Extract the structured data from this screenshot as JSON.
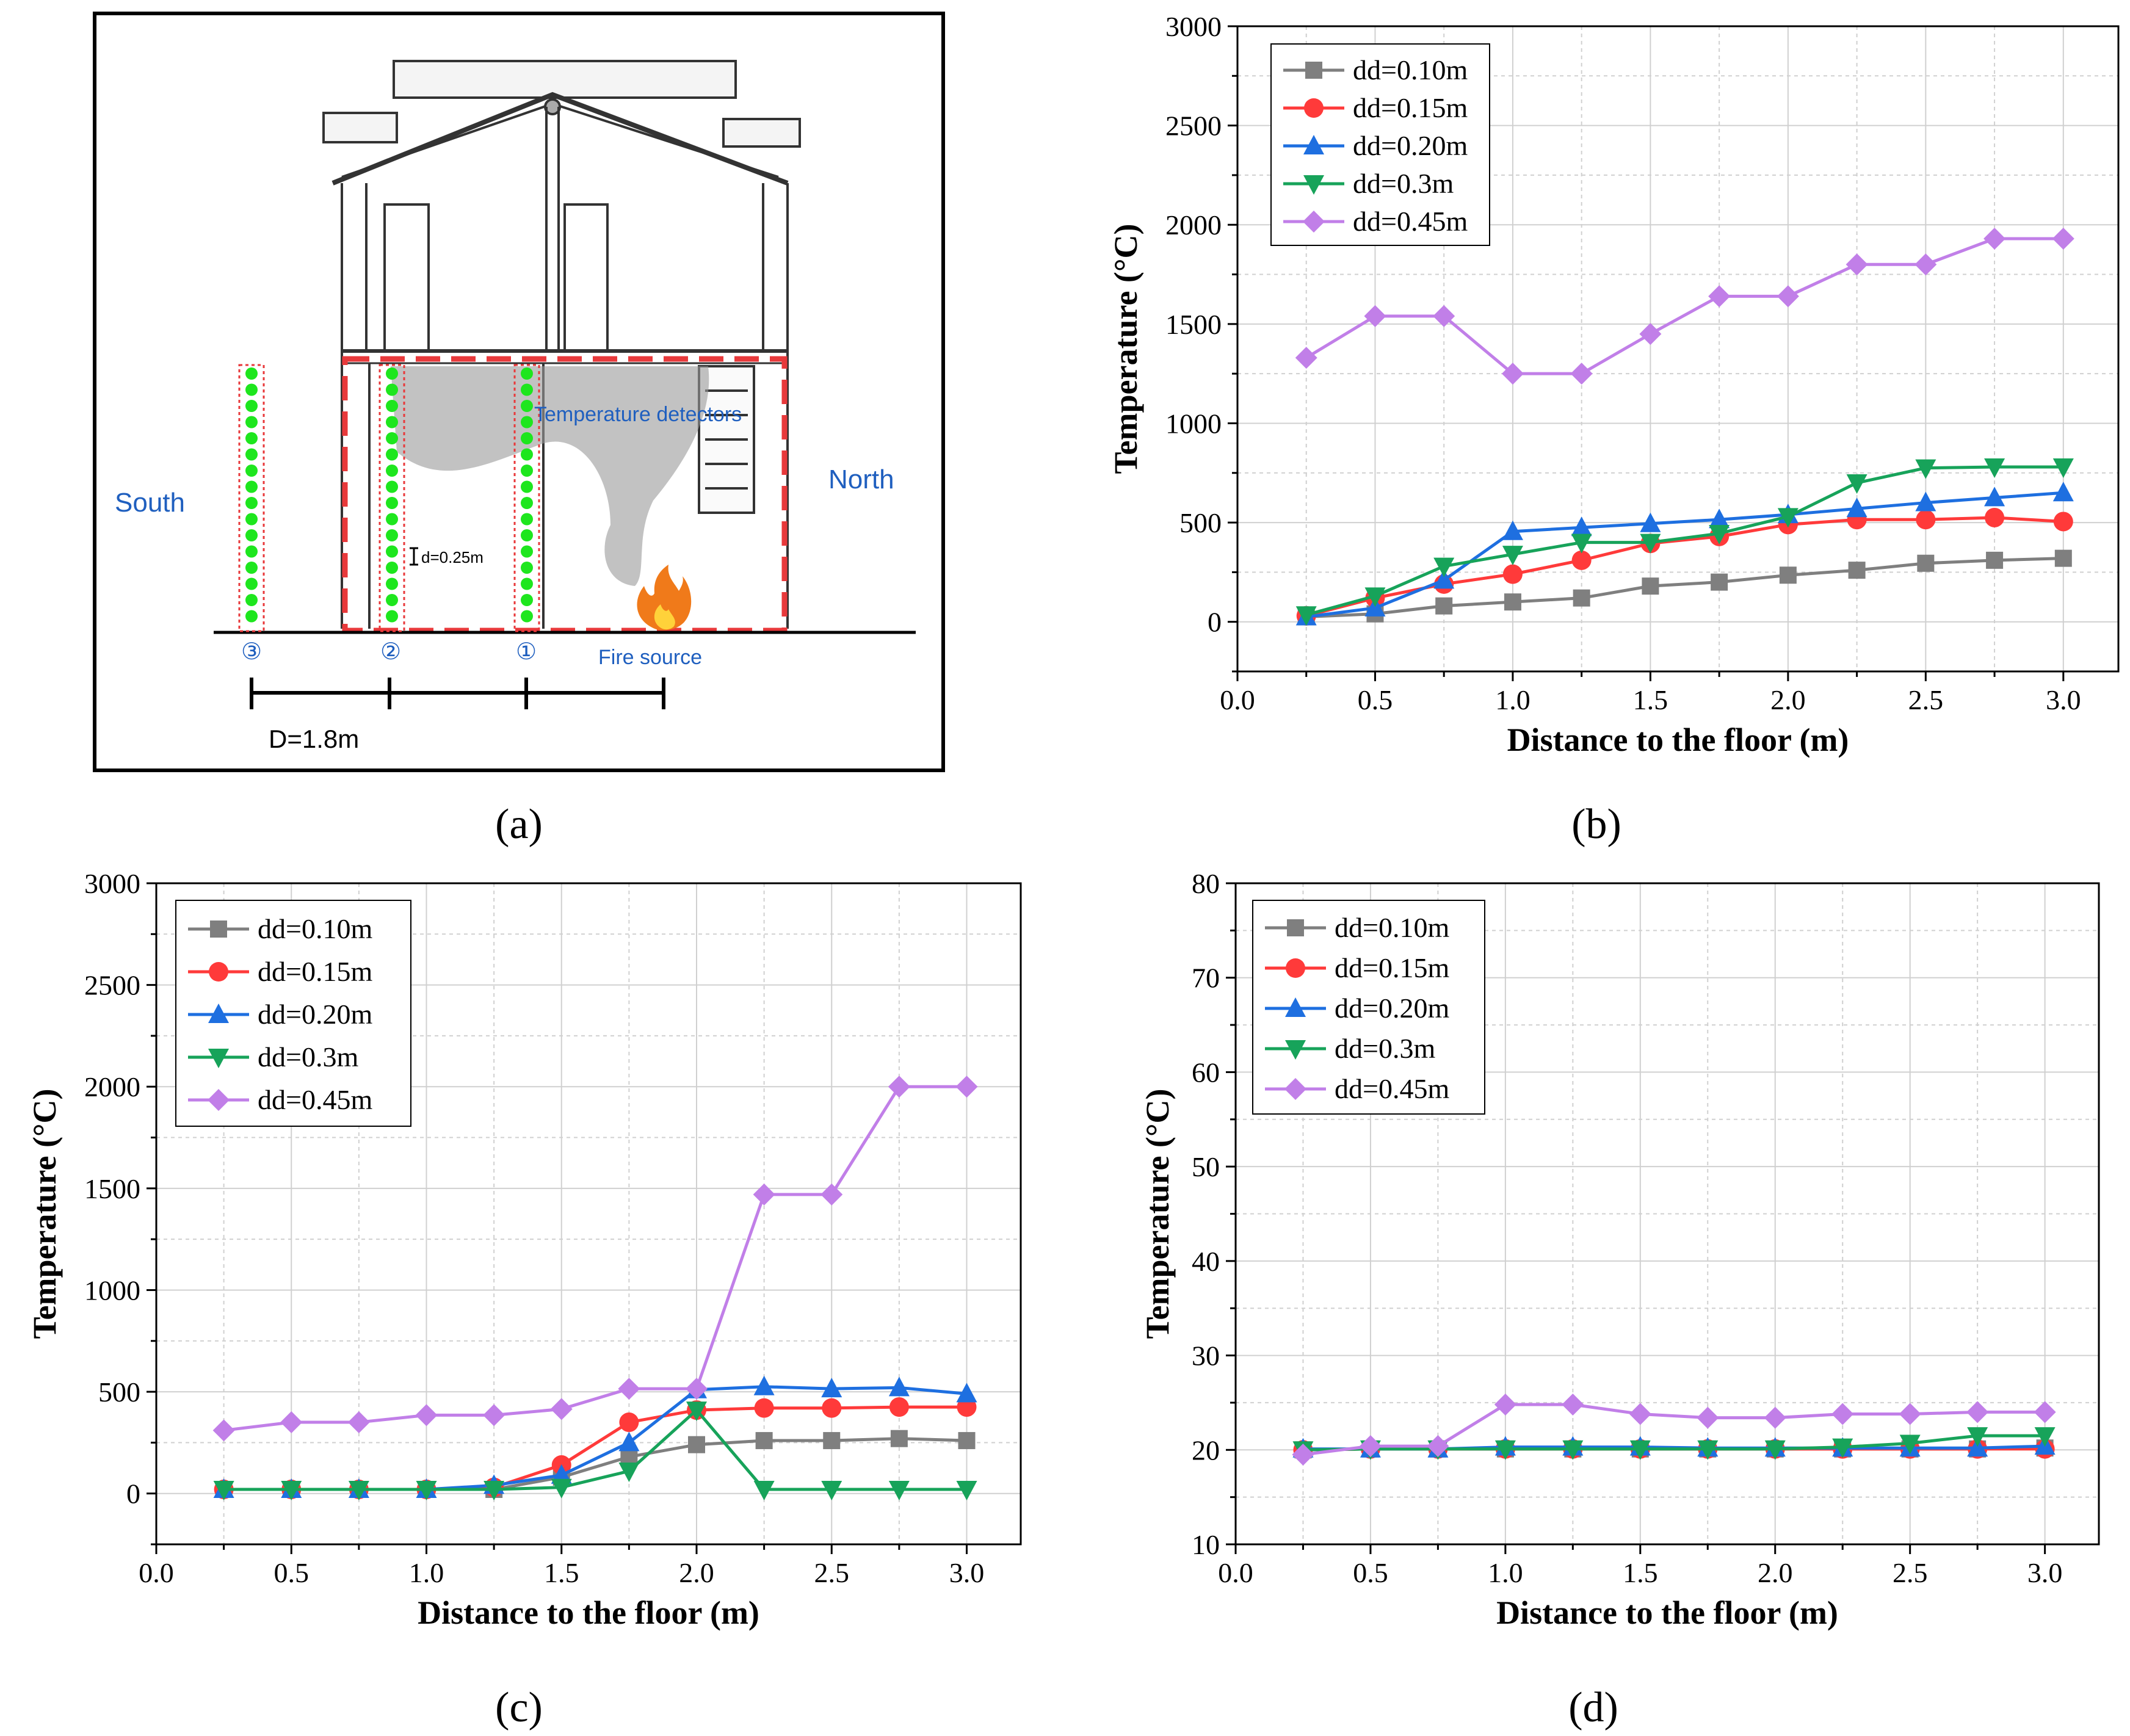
{
  "panels": {
    "a": {
      "label": "(a)",
      "south": "South",
      "north": "North",
      "temperature_detectors": "Temperature detectors",
      "fire_source": "Fire source",
      "spacing": "d=0.25m",
      "distance": "D=1.8m",
      "markers": [
        "③",
        "②",
        "①"
      ]
    },
    "b": {
      "label": "(b)"
    },
    "c": {
      "label": "(c)"
    },
    "d": {
      "label": "(d)"
    }
  },
  "colors": {
    "dd010": "#7f7f7f",
    "dd015": "#ff3a3a",
    "dd020": "#1e6fe0",
    "dd030": "#17a35a",
    "dd045": "#c17fe8",
    "frame": "#000000",
    "grid": "#d0d0d0",
    "annotation_blue": "#1f5fbf",
    "detector_green": "#1ee61e",
    "frame_red": "#e8393b"
  },
  "chart_data": [
    {
      "id": "b",
      "type": "line",
      "xlabel": "Distance to the floor (m)",
      "ylabel": "Temperature (°C)",
      "xlim": [
        0,
        3.2
      ],
      "ylim": [
        -250,
        3000
      ],
      "xticks": [
        "0.0",
        "0.5",
        "1.0",
        "1.5",
        "2.0",
        "2.5",
        "3.0"
      ],
      "yticks": [
        "0",
        "500",
        "1000",
        "1500",
        "2000",
        "2500",
        "3000"
      ],
      "x": [
        0.25,
        0.5,
        0.75,
        1.0,
        1.25,
        1.5,
        1.75,
        2.0,
        2.25,
        2.5,
        2.75,
        3.0
      ],
      "series": [
        {
          "name": "dd=0.10m",
          "marker": "square",
          "values": [
            25,
            40,
            80,
            100,
            120,
            180,
            200,
            235,
            260,
            295,
            310,
            320
          ]
        },
        {
          "name": "dd=0.15m",
          "marker": "circle",
          "values": [
            30,
            120,
            190,
            240,
            310,
            395,
            430,
            490,
            515,
            515,
            525,
            505
          ]
        },
        {
          "name": "dd=0.20m",
          "marker": "triangle-up",
          "values": [
            25,
            70,
            210,
            455,
            475,
            495,
            515,
            540,
            570,
            600,
            625,
            650
          ]
        },
        {
          "name": "dd=0.3m",
          "marker": "triangle-down",
          "values": [
            35,
            130,
            280,
            340,
            400,
            400,
            445,
            530,
            700,
            775,
            780,
            780
          ]
        },
        {
          "name": "dd=0.45m",
          "marker": "diamond",
          "values": [
            1330,
            1540,
            1540,
            1250,
            1250,
            1450,
            1640,
            1640,
            1800,
            1800,
            1930,
            1930
          ]
        }
      ]
    },
    {
      "id": "c",
      "type": "line",
      "xlabel": "Distance to the floor (m)",
      "ylabel": "Temperature (°C)",
      "xlim": [
        0,
        3.2
      ],
      "ylim": [
        -250,
        3000
      ],
      "xticks": [
        "0.0",
        "0.5",
        "1.0",
        "1.5",
        "2.0",
        "2.5",
        "3.0"
      ],
      "yticks": [
        "0",
        "500",
        "1000",
        "1500",
        "2000",
        "2500",
        "3000"
      ],
      "x": [
        0.25,
        0.5,
        0.75,
        1.0,
        1.25,
        1.5,
        1.75,
        2.0,
        2.25,
        2.5,
        2.75,
        3.0
      ],
      "series": [
        {
          "name": "dd=0.10m",
          "marker": "square",
          "values": [
            20,
            20,
            20,
            20,
            20,
            80,
            180,
            240,
            260,
            260,
            270,
            260
          ]
        },
        {
          "name": "dd=0.15m",
          "marker": "circle",
          "values": [
            20,
            20,
            20,
            20,
            30,
            140,
            350,
            410,
            420,
            420,
            425,
            425
          ]
        },
        {
          "name": "dd=0.20m",
          "marker": "triangle-up",
          "values": [
            20,
            20,
            20,
            20,
            40,
            90,
            250,
            510,
            525,
            515,
            520,
            490
          ]
        },
        {
          "name": "dd=0.3m",
          "marker": "triangle-down",
          "values": [
            20,
            20,
            20,
            20,
            20,
            30,
            110,
            410,
            20,
            20,
            20,
            20
          ]
        },
        {
          "name": "dd=0.45m",
          "marker": "diamond",
          "values": [
            310,
            350,
            350,
            385,
            385,
            415,
            515,
            515,
            1470,
            1470,
            2000,
            2000
          ]
        }
      ]
    },
    {
      "id": "d",
      "type": "line",
      "xlabel": "Distance to the floor (m)",
      "ylabel": "Temperature (°C)",
      "xlim": [
        0,
        3.2
      ],
      "ylim": [
        10,
        80
      ],
      "xticks": [
        "0.0",
        "0.5",
        "1.0",
        "1.5",
        "2.0",
        "2.5",
        "3.0"
      ],
      "yticks": [
        "10",
        "20",
        "30",
        "40",
        "50",
        "60",
        "70",
        "80"
      ],
      "x": [
        0.25,
        0.5,
        0.75,
        1.0,
        1.25,
        1.5,
        1.75,
        2.0,
        2.25,
        2.5,
        2.75,
        3.0
      ],
      "series": [
        {
          "name": "dd=0.10m",
          "marker": "square",
          "values": [
            20,
            20.1,
            20.1,
            20.1,
            20.1,
            20.1,
            20.1,
            20.1,
            20.1,
            20.1,
            20.1,
            20.2
          ]
        },
        {
          "name": "dd=0.15m",
          "marker": "circle",
          "values": [
            20,
            20.1,
            20.1,
            20.1,
            20.1,
            20.1,
            20.1,
            20.1,
            20.1,
            20.1,
            20.1,
            20.1
          ]
        },
        {
          "name": "dd=0.20m",
          "marker": "triangle-up",
          "values": [
            20.1,
            20.1,
            20.1,
            20.3,
            20.3,
            20.3,
            20.2,
            20.2,
            20.2,
            20.2,
            20.2,
            20.4
          ]
        },
        {
          "name": "dd=0.3m",
          "marker": "triangle-down",
          "values": [
            20,
            20.1,
            20.1,
            20.1,
            20.1,
            20.1,
            20.1,
            20.1,
            20.3,
            20.7,
            21.5,
            21.5
          ]
        },
        {
          "name": "dd=0.45m",
          "marker": "diamond",
          "values": [
            19.5,
            20.4,
            20.4,
            24.8,
            24.8,
            23.8,
            23.4,
            23.4,
            23.8,
            23.8,
            24,
            24
          ]
        }
      ]
    }
  ]
}
